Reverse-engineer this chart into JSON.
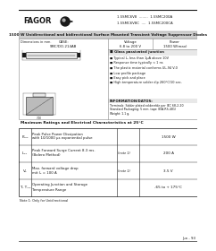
{
  "white": "#ffffff",
  "black": "#000000",
  "dark": "#1a1a1a",
  "gray_title": "#d0d0d0",
  "gray_mid": "#888888",
  "gray_light": "#bbbbbb",
  "gray_box": "#e8e8e8",
  "logo_text": "FAGOR",
  "part_lines": [
    "1.5SMC6V8  ........  1.5SMC200A",
    "1.5SMC6V8C  ....  1.5SMC200CA"
  ],
  "title": "1500 W Unidirectional and bidirectional Surface Mounted Transient Voltage Suppressor Diodes",
  "dim_label": "Dimensions in mm.",
  "case_label": "CASE:\nSMC/DO-214AB",
  "voltage_label": "Voltage\n6.8 to 200 V",
  "power_label": "Power\n1500 W(max)",
  "features_header": "Glass passivated junction",
  "features": [
    "Typical Iₘ less than 1μA above 10V",
    "Response time typically < 1 ns",
    "The plastic material conforms UL-94 V-0",
    "Low profile package",
    "Easy pick and place",
    "High temperature solder dip 260°C/10 sec."
  ],
  "info_header": "INFORMATION/DATOS:",
  "info_lines": [
    "Terminals: Solder plated solderable per IEC 68-2-20",
    "Standard Packaging: 5 mm. tape (EIA-RS-481)",
    "Weight: 1.1 g."
  ],
  "table_title": "Maximum Ratings and Electrical Characteristics at 25°C",
  "rows": [
    {
      "sym": "Pₚₚₖ",
      "desc1": "Peak Pulse Power Dissipation",
      "desc2": "with 10/1000 μs exponential pulse",
      "note": "",
      "val": "1500 W"
    },
    {
      "sym": "Iₚₚₖ",
      "desc1": "Peak Forward Surge Current 8.3 ms.",
      "desc2": "(Bolero Method)",
      "note": "(note 1)",
      "val": "200 A"
    },
    {
      "sym": "Vₑ",
      "desc1": "Max. forward voltage drop",
      "desc2": "mit Iₑ = 100 A",
      "note": "(note 1)",
      "val": "3.5 V"
    },
    {
      "sym": "Tⱼ, Tₛₜₛ",
      "desc1": "Operating Junction and Storage",
      "desc2": "Temperature Range",
      "note": "",
      "val": "-65 to + 175°C"
    }
  ],
  "note1": "Note 1: Only for Unidirectional",
  "footer": "Jun - 93"
}
